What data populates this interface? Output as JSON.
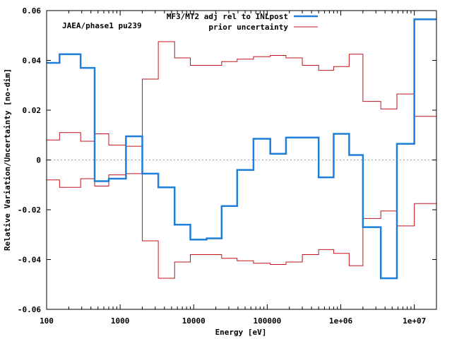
{
  "chart_data": {
    "type": "line",
    "step": true,
    "title": "",
    "annotation": "JAEA/phase1 pu239",
    "xlabel": "Energy [eV]",
    "ylabel": "Relative Variation/Uncertainty [no-dim]",
    "xscale": "log",
    "xlim": [
      100,
      20000000
    ],
    "ylim": [
      -0.06,
      0.06
    ],
    "x_ticks": [
      {
        "value": 100,
        "label": "100"
      },
      {
        "value": 1000,
        "label": "1000"
      },
      {
        "value": 10000,
        "label": "10000"
      },
      {
        "value": 100000,
        "label": "100000"
      },
      {
        "value": 1000000,
        "label": "1e+06"
      },
      {
        "value": 10000000,
        "label": "1e+07"
      }
    ],
    "y_ticks": [
      {
        "value": -0.06,
        "label": "-0.06"
      },
      {
        "value": -0.04,
        "label": "-0.04"
      },
      {
        "value": -0.02,
        "label": "-0.02"
      },
      {
        "value": 0,
        "label": "0"
      },
      {
        "value": 0.02,
        "label": "0.02"
      },
      {
        "value": 0.04,
        "label": "0.04"
      },
      {
        "value": 0.06,
        "label": "0.06"
      }
    ],
    "grid": false,
    "zero_line": true,
    "legend_position": "top-right",
    "bin_edges": [
      100,
      150,
      290,
      450,
      700,
      1200,
      2000,
      3300,
      5500,
      9000,
      15000,
      24000,
      39000,
      65000,
      110000,
      180000,
      300000,
      500000,
      800000,
      1300000,
      2000000,
      3500000,
      5800000,
      10000000,
      20000000
    ],
    "series": [
      {
        "name": "MF3/MT2 adj rel to INLpost",
        "color": "#1f7fd9",
        "width": 2.5,
        "values": [
          0.039,
          0.0425,
          0.037,
          -0.0085,
          -0.0075,
          0.0095,
          -0.0055,
          -0.011,
          -0.026,
          -0.032,
          -0.0315,
          -0.0185,
          -0.004,
          0.0085,
          0.0025,
          0.009,
          0.009,
          -0.007,
          0.0105,
          0.002,
          -0.027,
          -0.0475,
          0.0065,
          0.0565
        ]
      },
      {
        "name": "prior uncertainty",
        "color": "#c0141c",
        "width": 1,
        "mirrored": true,
        "values": [
          0.008,
          0.011,
          0.0075,
          0.0105,
          0.006,
          0.0055,
          0.0325,
          0.0475,
          0.041,
          0.038,
          0.038,
          0.0395,
          0.0405,
          0.0415,
          0.042,
          0.041,
          0.038,
          0.036,
          0.0375,
          0.0425,
          0.0235,
          0.0205,
          0.0265,
          0.0175
        ]
      }
    ]
  }
}
